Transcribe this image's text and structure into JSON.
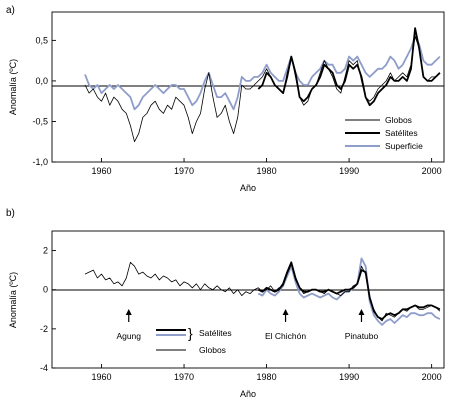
{
  "chart_data": [
    {
      "type": "line",
      "panel_label": "a)",
      "ylabel": "Anomalía (ºC)",
      "xlabel": "Año",
      "xlim": [
        1954,
        2001.5
      ],
      "ylim": [
        -1.0,
        0.85
      ],
      "xticks": [
        1960,
        1970,
        1980,
        1990,
        2000
      ],
      "yticks": [
        0.5,
        0.0,
        -0.5,
        -1.0
      ],
      "ytick_labels": [
        "0,5",
        "0,0",
        "-0,5",
        "-1,0"
      ],
      "legend_position": "bottom-right",
      "colors": {
        "globos": "#000000",
        "satelites": "#000000",
        "superficie": "#8e9dc9"
      },
      "series": [
        {
          "name": "Globos",
          "x": [
            1958.0,
            1958.5,
            1959.0,
            1959.5,
            1960.0,
            1960.5,
            1961.0,
            1961.5,
            1962.0,
            1962.5,
            1963.0,
            1963.5,
            1964.0,
            1964.5,
            1965.0,
            1965.5,
            1966.0,
            1966.5,
            1967.0,
            1967.5,
            1968.0,
            1968.5,
            1969.0,
            1969.5,
            1970.0,
            1970.5,
            1971.0,
            1971.5,
            1972.0,
            1972.5,
            1973.0,
            1973.5,
            1974.0,
            1974.5,
            1975.0,
            1975.5,
            1976.0,
            1976.5,
            1977.0,
            1977.5,
            1978.0,
            1978.5,
            1979.0,
            1979.5,
            1980.0,
            1980.5,
            1981.0,
            1981.5,
            1982.0,
            1982.5,
            1983.0,
            1983.5,
            1984.0,
            1984.5,
            1985.0,
            1985.5,
            1986.0,
            1986.5,
            1987.0,
            1987.5,
            1988.0,
            1988.5,
            1989.0,
            1989.5,
            1990.0,
            1990.5,
            1991.0,
            1991.5,
            1992.0,
            1992.5,
            1993.0,
            1993.5,
            1994.0,
            1994.5,
            1995.0,
            1995.5,
            1996.0,
            1996.5,
            1997.0,
            1997.5,
            1998.0,
            1998.5,
            1999.0,
            1999.5,
            2000.0,
            2000.5,
            2001.0
          ],
          "values": [
            -0.05,
            -0.15,
            -0.1,
            -0.2,
            -0.25,
            -0.15,
            -0.3,
            -0.2,
            -0.25,
            -0.35,
            -0.4,
            -0.55,
            -0.75,
            -0.65,
            -0.45,
            -0.4,
            -0.3,
            -0.25,
            -0.35,
            -0.4,
            -0.3,
            -0.35,
            -0.2,
            -0.25,
            -0.3,
            -0.45,
            -0.65,
            -0.5,
            -0.4,
            -0.1,
            0.1,
            -0.2,
            -0.45,
            -0.4,
            -0.3,
            -0.5,
            -0.65,
            -0.45,
            -0.05,
            -0.1,
            -0.1,
            -0.05,
            0.0,
            0.05,
            0.15,
            0.05,
            -0.05,
            -0.1,
            -0.15,
            0.1,
            0.3,
            0.05,
            -0.2,
            -0.3,
            -0.25,
            -0.1,
            -0.05,
            0.1,
            0.25,
            0.15,
            0.05,
            -0.1,
            -0.15,
            0.05,
            0.25,
            0.2,
            0.25,
            0.0,
            -0.2,
            -0.25,
            -0.2,
            -0.1,
            -0.05,
            0.0,
            0.1,
            0.0,
            0.05,
            0.1,
            0.05,
            0.2,
            0.55,
            0.4,
            0.05,
            0.0,
            0.05,
            0.05,
            0.1
          ]
        },
        {
          "name": "Satélites",
          "x": [
            1979.0,
            1979.5,
            1980.0,
            1980.5,
            1981.0,
            1981.5,
            1982.0,
            1982.5,
            1983.0,
            1983.5,
            1984.0,
            1984.5,
            1985.0,
            1985.5,
            1986.0,
            1986.5,
            1987.0,
            1987.5,
            1988.0,
            1988.5,
            1989.0,
            1989.5,
            1990.0,
            1990.5,
            1991.0,
            1991.5,
            1992.0,
            1992.5,
            1993.0,
            1993.5,
            1994.0,
            1994.5,
            1995.0,
            1995.5,
            1996.0,
            1996.5,
            1997.0,
            1997.5,
            1998.0,
            1998.5,
            1999.0,
            1999.5,
            2000.0,
            2000.5,
            2001.0
          ],
          "values": [
            -0.1,
            -0.05,
            0.1,
            0.05,
            -0.05,
            -0.1,
            -0.15,
            0.05,
            0.3,
            0.1,
            -0.2,
            -0.25,
            -0.2,
            -0.1,
            -0.05,
            0.05,
            0.2,
            0.15,
            0.1,
            -0.05,
            -0.1,
            0.0,
            0.2,
            0.15,
            0.2,
            0.05,
            -0.2,
            -0.3,
            -0.25,
            -0.15,
            -0.1,
            -0.05,
            0.05,
            0.0,
            0.0,
            0.05,
            0.0,
            0.15,
            0.65,
            0.4,
            0.05,
            0.0,
            0.0,
            0.05,
            0.1
          ]
        },
        {
          "name": "Superficie",
          "x": [
            1958.0,
            1958.5,
            1959.0,
            1959.5,
            1960.0,
            1960.5,
            1961.0,
            1961.5,
            1962.0,
            1962.5,
            1963.0,
            1963.5,
            1964.0,
            1964.5,
            1965.0,
            1965.5,
            1966.0,
            1966.5,
            1967.0,
            1967.5,
            1968.0,
            1968.5,
            1969.0,
            1969.5,
            1970.0,
            1970.5,
            1971.0,
            1971.5,
            1972.0,
            1972.5,
            1973.0,
            1973.5,
            1974.0,
            1974.5,
            1975.0,
            1975.5,
            1976.0,
            1976.5,
            1977.0,
            1977.5,
            1978.0,
            1978.5,
            1979.0,
            1979.5,
            1980.0,
            1980.5,
            1981.0,
            1981.5,
            1982.0,
            1982.5,
            1983.0,
            1983.5,
            1984.0,
            1984.5,
            1985.0,
            1985.5,
            1986.0,
            1986.5,
            1987.0,
            1987.5,
            1988.0,
            1988.5,
            1989.0,
            1989.5,
            1990.0,
            1990.5,
            1991.0,
            1991.5,
            1992.0,
            1992.5,
            1993.0,
            1993.5,
            1994.0,
            1994.5,
            1995.0,
            1995.5,
            1996.0,
            1996.5,
            1997.0,
            1997.5,
            1998.0,
            1998.5,
            1999.0,
            1999.5,
            2000.0,
            2000.5,
            2001.0
          ],
          "values": [
            0.08,
            -0.05,
            -0.1,
            -0.05,
            -0.15,
            -0.1,
            -0.05,
            -0.1,
            -0.05,
            -0.1,
            -0.15,
            -0.2,
            -0.35,
            -0.3,
            -0.2,
            -0.15,
            -0.1,
            -0.05,
            -0.1,
            -0.15,
            -0.1,
            -0.05,
            -0.05,
            -0.1,
            -0.1,
            -0.2,
            -0.3,
            -0.25,
            -0.15,
            0.0,
            0.1,
            -0.05,
            -0.2,
            -0.2,
            -0.15,
            -0.25,
            -0.35,
            -0.2,
            0.05,
            0.0,
            0.0,
            0.05,
            0.05,
            0.1,
            0.2,
            0.1,
            0.05,
            0.0,
            0.0,
            0.15,
            0.3,
            0.1,
            0.0,
            -0.05,
            -0.05,
            0.05,
            0.1,
            0.15,
            0.25,
            0.2,
            0.2,
            0.1,
            0.1,
            0.15,
            0.3,
            0.25,
            0.3,
            0.2,
            0.1,
            0.05,
            0.1,
            0.15,
            0.15,
            0.2,
            0.3,
            0.25,
            0.15,
            0.2,
            0.3,
            0.4,
            0.55,
            0.45,
            0.25,
            0.2,
            0.2,
            0.25,
            0.3
          ]
        }
      ]
    },
    {
      "type": "line",
      "panel_label": "b)",
      "ylabel": "Anomalía (ºC)",
      "xlabel": "Año",
      "xlim": [
        1954,
        2001.5
      ],
      "ylim": [
        -4,
        3
      ],
      "xticks": [
        1960,
        1970,
        1980,
        1990,
        2000
      ],
      "yticks": [
        2,
        0,
        -2,
        -4
      ],
      "ytick_labels": [
        "2",
        "0",
        "-2",
        "-4"
      ],
      "legend_position": "bottom-center",
      "legend_satelites_label": "Satélites",
      "legend_globos_label": "Globos",
      "colors": {
        "globos": "#000000",
        "satelites": "#000000",
        "superficie": "#8e9dc9"
      },
      "annotations": [
        {
          "text": "Agung",
          "x": 1963.3
        },
        {
          "text": "El Chichón",
          "x": 1982.3
        },
        {
          "text": "Pinatubo",
          "x": 1991.5
        }
      ],
      "series": [
        {
          "name": "Globos",
          "x": [
            1958.0,
            1958.5,
            1959.0,
            1959.5,
            1960.0,
            1960.5,
            1961.0,
            1961.5,
            1962.0,
            1962.5,
            1963.0,
            1963.5,
            1964.0,
            1964.5,
            1965.0,
            1965.5,
            1966.0,
            1966.5,
            1967.0,
            1967.5,
            1968.0,
            1968.5,
            1969.0,
            1969.5,
            1970.0,
            1970.5,
            1971.0,
            1971.5,
            1972.0,
            1972.5,
            1973.0,
            1973.5,
            1974.0,
            1974.5,
            1975.0,
            1975.5,
            1976.0,
            1976.5,
            1977.0,
            1977.5,
            1978.0,
            1978.5,
            1979.0,
            1979.5,
            1980.0,
            1980.5,
            1981.0,
            1981.5,
            1982.0,
            1982.5,
            1983.0,
            1983.5,
            1984.0,
            1984.5,
            1985.0,
            1985.5,
            1986.0,
            1986.5,
            1987.0,
            1987.5,
            1988.0,
            1988.5,
            1989.0,
            1989.5,
            1990.0,
            1990.5,
            1991.0,
            1991.5,
            1992.0,
            1992.5,
            1993.0,
            1993.5,
            1994.0,
            1994.5,
            1995.0,
            1995.5,
            1996.0,
            1996.5,
            1997.0,
            1997.5,
            1998.0,
            1998.5,
            1999.0,
            1999.5,
            2000.0,
            2000.5,
            2001.0
          ],
          "values": [
            0.8,
            0.9,
            1.0,
            0.6,
            0.8,
            0.5,
            0.6,
            0.3,
            0.4,
            0.2,
            0.6,
            1.4,
            1.2,
            0.8,
            0.9,
            0.7,
            0.6,
            0.8,
            0.5,
            0.7,
            0.6,
            0.4,
            0.5,
            0.2,
            0.4,
            0.3,
            0.1,
            0.3,
            0.0,
            0.3,
            0.1,
            0.0,
            0.2,
            0.0,
            -0.1,
            0.1,
            -0.2,
            0.0,
            -0.3,
            -0.1,
            -0.2,
            0.0,
            0.1,
            -0.1,
            0.0,
            0.2,
            -0.1,
            0.1,
            0.2,
            0.8,
            1.3,
            0.5,
            0.1,
            -0.2,
            -0.1,
            0.0,
            0.0,
            -0.1,
            -0.2,
            0.0,
            -0.1,
            -0.2,
            -0.3,
            -0.1,
            -0.1,
            0.2,
            0.3,
            1.2,
            0.8,
            -0.5,
            -1.0,
            -1.4,
            -1.6,
            -1.2,
            -1.3,
            -1.4,
            -1.2,
            -1.0,
            -1.1,
            -0.9,
            -0.8,
            -1.0,
            -1.0,
            -0.9,
            -0.8,
            -0.9,
            -1.1
          ]
        },
        {
          "name": "Satélites",
          "x": [
            1979.0,
            1979.5,
            1980.0,
            1980.5,
            1981.0,
            1981.5,
            1982.0,
            1982.5,
            1983.0,
            1983.5,
            1984.0,
            1984.5,
            1985.0,
            1985.5,
            1986.0,
            1986.5,
            1987.0,
            1987.5,
            1988.0,
            1988.5,
            1989.0,
            1989.5,
            1990.0,
            1990.5,
            1991.0,
            1991.5,
            1992.0,
            1992.5,
            1993.0,
            1993.5,
            1994.0,
            1994.5,
            1995.0,
            1995.5,
            1996.0,
            1996.5,
            1997.0,
            1997.5,
            1998.0,
            1998.5,
            1999.0,
            1999.5,
            2000.0,
            2000.5,
            2001.0
          ],
          "values": [
            0.0,
            -0.1,
            0.1,
            0.0,
            -0.1,
            0.0,
            0.3,
            0.9,
            1.4,
            0.6,
            0.1,
            -0.1,
            -0.1,
            0.0,
            0.0,
            -0.1,
            -0.1,
            0.0,
            -0.1,
            -0.2,
            -0.1,
            0.0,
            0.0,
            0.1,
            0.3,
            1.0,
            0.9,
            -0.4,
            -1.1,
            -1.4,
            -1.5,
            -1.3,
            -1.2,
            -1.3,
            -1.2,
            -1.0,
            -1.0,
            -0.9,
            -0.8,
            -0.9,
            -0.9,
            -0.8,
            -0.8,
            -0.9,
            -1.0
          ]
        },
        {
          "name": "Superficie",
          "x": [
            1979.0,
            1979.5,
            1980.0,
            1980.5,
            1981.0,
            1981.5,
            1982.0,
            1982.5,
            1983.0,
            1983.5,
            1984.0,
            1984.5,
            1985.0,
            1985.5,
            1986.0,
            1986.5,
            1987.0,
            1987.5,
            1988.0,
            1988.5,
            1989.0,
            1989.5,
            1990.0,
            1990.5,
            1991.0,
            1991.5,
            1992.0,
            1992.5,
            1993.0,
            1993.5,
            1994.0,
            1994.5,
            1995.0,
            1995.5,
            1996.0,
            1996.5,
            1997.0,
            1997.5,
            1998.0,
            1998.5,
            1999.0,
            1999.5,
            2000.0,
            2000.5,
            2001.0
          ],
          "values": [
            -0.2,
            -0.3,
            0.0,
            -0.2,
            -0.3,
            -0.1,
            0.2,
            0.7,
            1.2,
            0.4,
            -0.2,
            -0.4,
            -0.3,
            -0.2,
            -0.3,
            -0.4,
            -0.3,
            -0.2,
            -0.4,
            -0.5,
            -0.3,
            -0.1,
            -0.1,
            0.1,
            0.3,
            1.6,
            1.2,
            -0.6,
            -1.3,
            -1.6,
            -1.8,
            -1.6,
            -1.5,
            -1.7,
            -1.5,
            -1.3,
            -1.4,
            -1.2,
            -1.2,
            -1.3,
            -1.3,
            -1.2,
            -1.2,
            -1.4,
            -1.5
          ]
        }
      ]
    }
  ]
}
